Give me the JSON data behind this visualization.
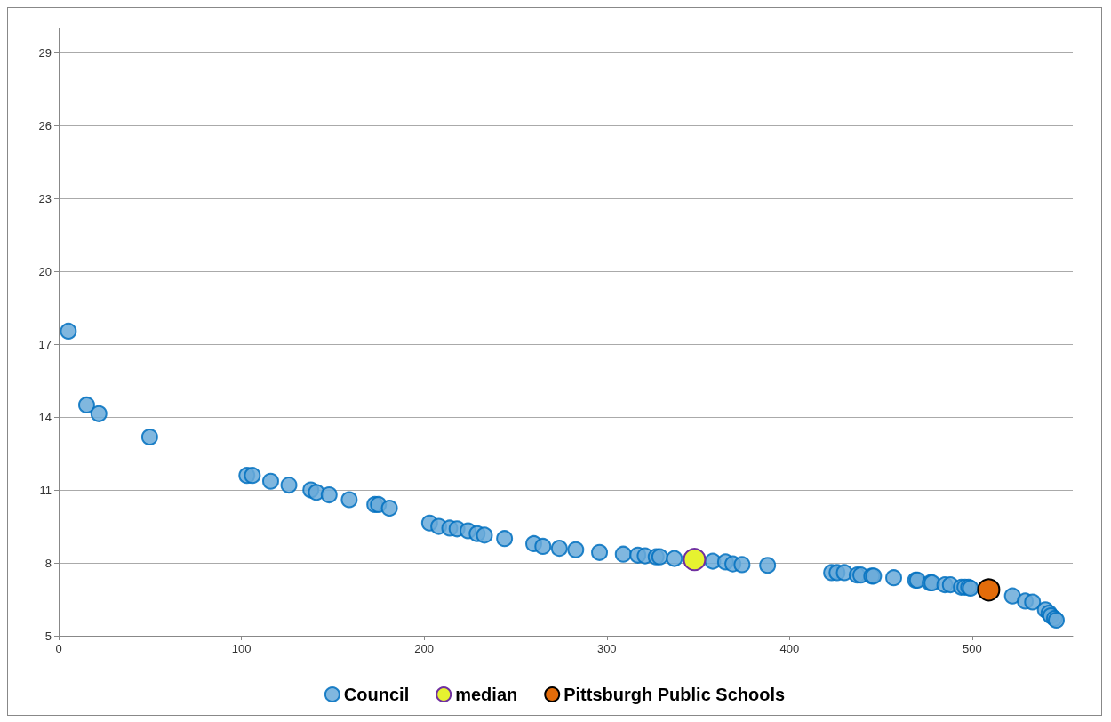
{
  "chart_data": {
    "type": "scatter",
    "xlim": [
      0,
      555
    ],
    "xticks": [
      0,
      100,
      200,
      300,
      400,
      500
    ],
    "ylim": [
      5,
      30
    ],
    "yticks": [
      5,
      8,
      11,
      14,
      17,
      20,
      23,
      26,
      29
    ],
    "grid": "y",
    "legend": "bottom",
    "marker": "circle",
    "series": [
      {
        "name": "Council",
        "color": "#6aaad9",
        "x": [
          5.3,
          15.3,
          22,
          49.8,
          103,
          106,
          116,
          126,
          138,
          141,
          148,
          159,
          173,
          175,
          181,
          203,
          208,
          214,
          218,
          224,
          229,
          233,
          244,
          260,
          265,
          274,
          283,
          296,
          309,
          317,
          321,
          327,
          329,
          337,
          358,
          365,
          369,
          374,
          388,
          423,
          426,
          430,
          437,
          439,
          445,
          446,
          457,
          469,
          470,
          477,
          478,
          485,
          488,
          494,
          496,
          498,
          499,
          522,
          529,
          533,
          540,
          542,
          543,
          545,
          546
        ],
        "values": [
          17.54,
          14.5,
          14.14,
          13.18,
          11.6,
          11.6,
          11.36,
          11.2,
          11.0,
          10.9,
          10.8,
          10.6,
          10.4,
          10.4,
          10.25,
          9.64,
          9.5,
          9.43,
          9.4,
          9.32,
          9.2,
          9.14,
          9.0,
          8.79,
          8.68,
          8.6,
          8.54,
          8.43,
          8.36,
          8.32,
          8.29,
          8.25,
          8.25,
          8.18,
          8.07,
          8.04,
          7.96,
          7.93,
          7.9,
          7.6,
          7.6,
          7.6,
          7.5,
          7.5,
          7.46,
          7.46,
          7.39,
          7.29,
          7.29,
          7.18,
          7.18,
          7.1,
          7.1,
          7.0,
          7.0,
          7.0,
          6.96,
          6.64,
          6.43,
          6.39,
          6.07,
          5.93,
          5.82,
          5.71,
          5.64
        ]
      },
      {
        "name": "median",
        "color": "#e6f230",
        "x": [
          348
        ],
        "values": [
          8.14
        ]
      },
      {
        "name": "Pittsburgh Public Schools",
        "color": "#e36c0a",
        "x": [
          509
        ],
        "values": [
          6.89
        ]
      }
    ]
  }
}
